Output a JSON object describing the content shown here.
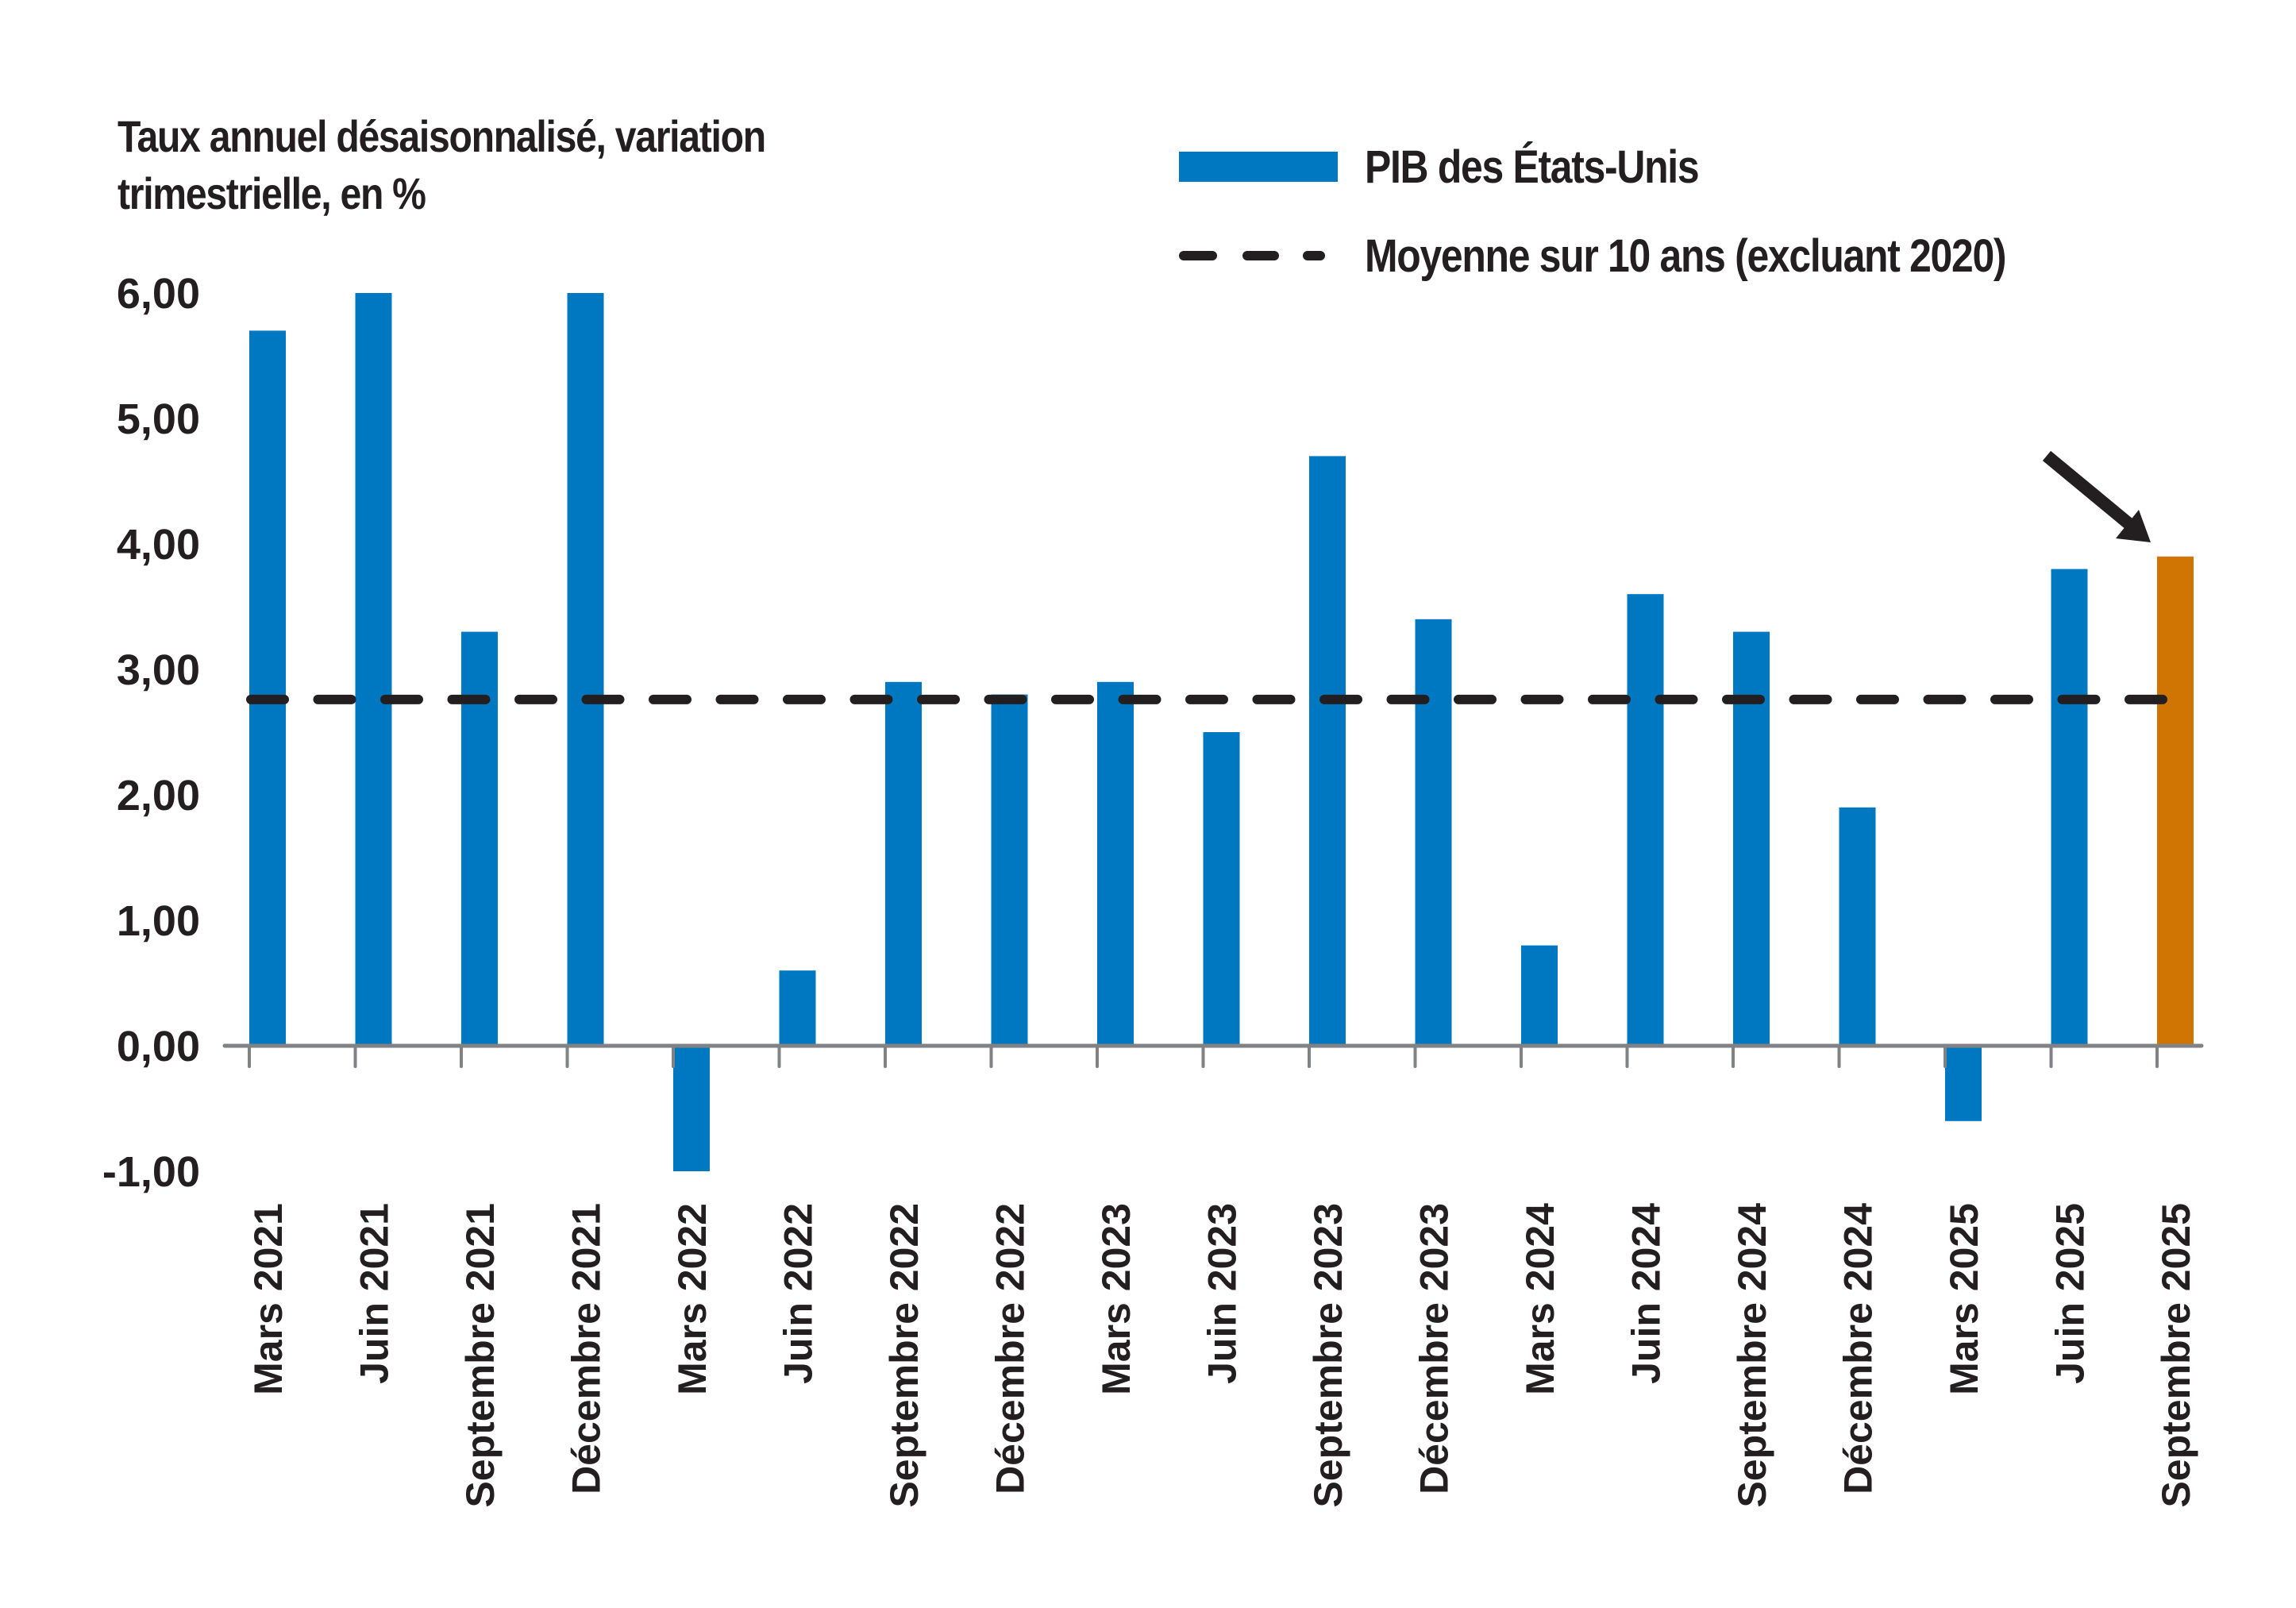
{
  "chart_data": {
    "type": "bar",
    "title": "",
    "ylabel": "Taux annuel désaisonnalisé, variation trimestrielle, en %",
    "ylabel_lines": [
      "Taux annuel désaisonnalisé, variation",
      "trimestrielle, en %"
    ],
    "xlabel": "",
    "ylim": [
      -1,
      6
    ],
    "yticks": [
      6,
      5,
      4,
      3,
      2,
      1,
      0,
      -1
    ],
    "ytick_labels": [
      "6,00",
      "5,00",
      "4,00",
      "3,00",
      "2,00",
      "1,00",
      "0,00",
      "-1,00"
    ],
    "categories": [
      "Mars 2021",
      "Juin 2021",
      "Septembre 2021",
      "Décembre 2021",
      "Mars 2022",
      "Juin 2022",
      "Septembre 2022",
      "Décembre 2022",
      "Mars 2023",
      "Juin 2023",
      "Septembre 2023",
      "Décembre 2023",
      "Mars 2024",
      "Juin 2024",
      "Septembre 2024",
      "Décembre 2024",
      "Mars 2025",
      "Juin 2025",
      "Septembre 2025"
    ],
    "series": [
      {
        "name": "PIB des États-Unis",
        "color": "#0078C1",
        "highlight_color": "#D07504",
        "highlight_index": 18,
        "values": [
          5.7,
          6.0,
          3.3,
          6.0,
          -1.0,
          0.6,
          2.9,
          2.8,
          2.9,
          2.5,
          4.7,
          3.4,
          0.8,
          3.6,
          3.3,
          1.9,
          -0.6,
          3.8,
          3.9
        ]
      }
    ],
    "reference_lines": [
      {
        "name": "Moyenne sur 10 ans (excluant 2020)",
        "value": 2.76,
        "style": "dashed",
        "color": "#231F20"
      }
    ],
    "legend": {
      "position": "top-right",
      "entries": [
        "PIB des États-Unis",
        "Moyenne sur 10 ans (excluant 2020)"
      ]
    },
    "annotation": {
      "type": "arrow",
      "points_to": "Septembre 2025",
      "color": "#231F20"
    },
    "grid": false,
    "axis_color": "#808285",
    "text_color": "#231F20"
  }
}
